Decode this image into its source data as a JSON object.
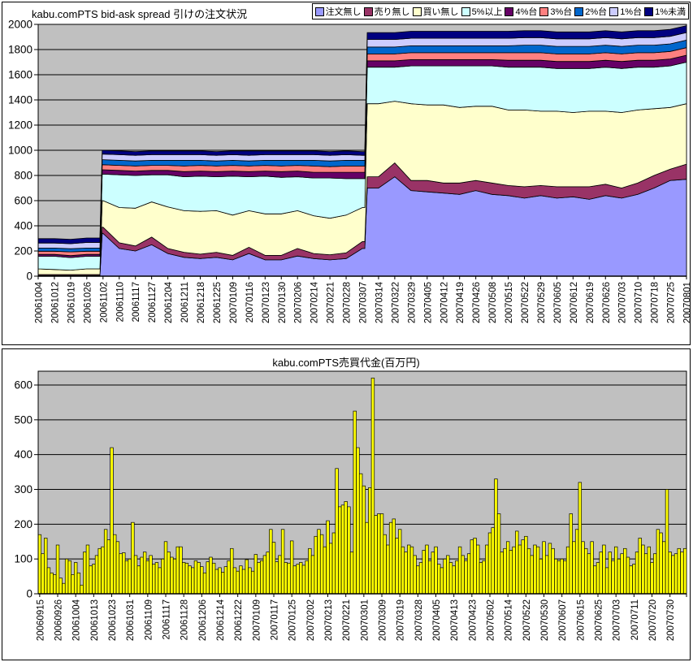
{
  "chart_data": [
    {
      "id": "spread",
      "type": "area",
      "stacked": true,
      "title": "kabu.comPTS bid-ask spread 引けの注文状況",
      "ylim": [
        0,
        2000
      ],
      "y_ticks": [
        0,
        200,
        400,
        600,
        800,
        1000,
        1200,
        1400,
        1600,
        1800,
        2000
      ],
      "grid": true,
      "legend_position": "top-right",
      "plot_bg": "#C0C0C0",
      "x_tick_labels": [
        "20061004",
        "20061012",
        "20061019",
        "20061026",
        "20061102",
        "20061110",
        "20061117",
        "20061127",
        "20061204",
        "20061211",
        "20061218",
        "20061225",
        "20070109",
        "20070116",
        "20070123",
        "20070130",
        "20070206",
        "20070214",
        "20070221",
        "20070228",
        "20070307",
        "20070314",
        "20070322",
        "20070329",
        "20070405",
        "20070412",
        "20070419",
        "20070426",
        "20070508",
        "20070515",
        "20070522",
        "20070529",
        "20070605",
        "20070612",
        "20070619",
        "20070626",
        "20070703",
        "20070710",
        "20070718",
        "20070725",
        "20070801"
      ],
      "x": [
        0,
        1,
        2,
        3,
        3.81,
        3.95,
        4,
        5,
        6,
        7,
        8,
        9,
        10,
        11,
        12,
        13,
        14,
        15,
        16,
        17,
        18,
        19,
        20,
        20.15,
        20.3,
        21,
        22,
        23,
        24,
        25,
        26,
        27,
        28,
        29,
        30,
        31,
        32,
        33,
        34,
        35,
        36,
        37,
        38,
        39,
        40
      ],
      "series": [
        {
          "name": "注文無し",
          "color": "#9999FF",
          "values": [
            5,
            5,
            5,
            5,
            5,
            340,
            340,
            220,
            200,
            250,
            180,
            150,
            140,
            150,
            130,
            180,
            130,
            130,
            160,
            140,
            130,
            140,
            220,
            220,
            700,
            700,
            790,
            680,
            670,
            660,
            650,
            680,
            650,
            640,
            620,
            640,
            620,
            630,
            610,
            640,
            620,
            650,
            700,
            760,
            770
          ]
        },
        {
          "name": "売り無し",
          "color": "#993366",
          "values": [
            8,
            8,
            8,
            8,
            8,
            50,
            50,
            45,
            40,
            60,
            40,
            40,
            35,
            40,
            35,
            50,
            35,
            35,
            60,
            40,
            40,
            45,
            55,
            55,
            90,
            90,
            110,
            80,
            90,
            80,
            90,
            80,
            90,
            80,
            90,
            80,
            90,
            80,
            100,
            90,
            80,
            90,
            100,
            90,
            120
          ]
        },
        {
          "name": "買い無し",
          "color": "#FFFFCC",
          "values": [
            45,
            40,
            35,
            45,
            45,
            210,
            210,
            280,
            300,
            280,
            330,
            330,
            340,
            330,
            320,
            290,
            330,
            330,
            300,
            300,
            290,
            300,
            270,
            270,
            580,
            580,
            490,
            610,
            600,
            620,
            600,
            590,
            610,
            600,
            610,
            590,
            600,
            590,
            600,
            580,
            600,
            580,
            530,
            490,
            480
          ]
        },
        {
          "name": "5%以上",
          "color": "#CCFFFF",
          "values": [
            100,
            105,
            100,
            100,
            100,
            210,
            210,
            260,
            260,
            215,
            255,
            270,
            280,
            270,
            310,
            270,
            300,
            290,
            270,
            300,
            320,
            290,
            230,
            230,
            290,
            290,
            270,
            300,
            310,
            310,
            330,
            320,
            320,
            340,
            340,
            350,
            340,
            350,
            340,
            350,
            350,
            340,
            330,
            330,
            330
          ]
        },
        {
          "name": "4%台",
          "color": "#660066",
          "values": [
            15,
            15,
            15,
            15,
            15,
            35,
            35,
            35,
            35,
            35,
            35,
            40,
            40,
            40,
            40,
            40,
            40,
            45,
            45,
            45,
            45,
            50,
            50,
            50,
            50,
            50,
            50,
            50,
            50,
            50,
            50,
            50,
            50,
            55,
            55,
            55,
            55,
            55,
            55,
            55,
            55,
            55,
            55,
            55,
            55
          ]
        },
        {
          "name": "3%台",
          "color": "#FF8080",
          "values": [
            25,
            25,
            30,
            25,
            25,
            40,
            40,
            40,
            40,
            40,
            40,
            45,
            45,
            45,
            45,
            45,
            45,
            45,
            45,
            50,
            45,
            50,
            50,
            50,
            55,
            55,
            55,
            55,
            55,
            55,
            55,
            55,
            55,
            60,
            60,
            60,
            60,
            60,
            60,
            60,
            60,
            60,
            60,
            60,
            60
          ]
        },
        {
          "name": "2%台",
          "color": "#0066CC",
          "values": [
            25,
            25,
            25,
            25,
            25,
            40,
            40,
            40,
            40,
            40,
            40,
            45,
            40,
            40,
            40,
            40,
            40,
            45,
            40,
            45,
            45,
            45,
            45,
            45,
            55,
            55,
            55,
            55,
            55,
            55,
            55,
            55,
            55,
            55,
            60,
            60,
            60,
            60,
            60,
            60,
            60,
            60,
            60,
            60,
            60
          ]
        },
        {
          "name": "1%台",
          "color": "#CCCCFF",
          "values": [
            40,
            40,
            40,
            45,
            45,
            45,
            45,
            45,
            45,
            45,
            45,
            45,
            45,
            45,
            45,
            45,
            45,
            45,
            45,
            45,
            45,
            45,
            40,
            40,
            60,
            60,
            60,
            60,
            60,
            60,
            60,
            60,
            60,
            60,
            60,
            60,
            60,
            60,
            60,
            60,
            60,
            60,
            60,
            60,
            60
          ]
        },
        {
          "name": "1%未満",
          "color": "#000080",
          "values": [
            35,
            35,
            35,
            35,
            35,
            30,
            30,
            30,
            30,
            30,
            30,
            30,
            30,
            30,
            30,
            35,
            30,
            30,
            30,
            30,
            30,
            30,
            30,
            30,
            55,
            55,
            55,
            55,
            55,
            55,
            55,
            55,
            55,
            55,
            55,
            55,
            55,
            55,
            55,
            55,
            55,
            55,
            55,
            55,
            55
          ]
        }
      ]
    },
    {
      "id": "turnover",
      "type": "bar",
      "title": "kabu.comPTS売買代金(百万円)",
      "ylim": [
        0,
        640
      ],
      "y_ticks": [
        0,
        100,
        200,
        300,
        400,
        500,
        600
      ],
      "grid": true,
      "plot_bg": "#C0C0C0",
      "bar_color": "#FFFF00",
      "label_every": 6,
      "x_tick_labels": [
        "20060915",
        "20060926",
        "20061004",
        "20061013",
        "20061023",
        "20061031",
        "20061109",
        "20061117",
        "20061128",
        "20061206",
        "20061214",
        "20061222",
        "20070109",
        "20070117",
        "20070125",
        "20070202",
        "20070213",
        "20070221",
        "20070301",
        "20070309",
        "20070319",
        "20070328",
        "20070405",
        "20070413",
        "20070423",
        "20070502",
        "20070514",
        "20070522",
        "20070530",
        "20070607",
        "20070615",
        "20070625",
        "20070703",
        "20070711",
        "20070720",
        "20070730"
      ],
      "values": [
        170,
        115,
        160,
        75,
        60,
        55,
        140,
        45,
        30,
        100,
        95,
        55,
        90,
        60,
        25,
        120,
        140,
        80,
        85,
        110,
        130,
        135,
        185,
        155,
        420,
        170,
        150,
        115,
        118,
        95,
        100,
        205,
        110,
        80,
        105,
        120,
        95,
        110,
        85,
        90,
        75,
        100,
        150,
        120,
        105,
        100,
        135,
        135,
        90,
        88,
        80,
        75,
        95,
        90,
        78,
        60,
        92,
        105,
        88,
        70,
        75,
        62,
        78,
        95,
        130,
        75,
        65,
        80,
        70,
        98,
        75,
        65,
        113,
        90,
        95,
        110,
        120,
        185,
        148,
        92,
        110,
        185,
        90,
        88,
        152,
        80,
        85,
        90,
        82,
        95,
        130,
        110,
        165,
        185,
        170,
        135,
        210,
        145,
        175,
        360,
        250,
        255,
        265,
        250,
        120,
        525,
        420,
        345,
        310,
        205,
        305,
        620,
        225,
        230,
        230,
        170,
        140,
        205,
        215,
        160,
        185,
        135,
        120,
        140,
        135,
        110,
        80,
        90,
        125,
        140,
        95,
        120,
        135,
        85,
        75,
        100,
        110,
        90,
        80,
        95,
        135,
        110,
        95,
        115,
        155,
        160,
        140,
        90,
        95,
        140,
        175,
        190,
        330,
        230,
        120,
        130,
        150,
        125,
        135,
        180,
        140,
        155,
        165,
        130,
        110,
        140,
        135,
        100,
        150,
        110,
        145,
        130,
        100,
        95,
        100,
        95,
        135,
        230,
        150,
        185,
        320,
        150,
        130,
        115,
        150,
        80,
        90,
        120,
        140,
        75,
        120,
        95,
        135,
        100,
        115,
        130,
        105,
        80,
        85,
        120,
        160,
        140,
        115,
        135,
        90,
        115,
        185,
        175,
        150,
        300,
        120,
        110,
        115,
        130,
        120,
        130
      ]
    }
  ],
  "colors": {
    "plot_background": "#C0C0C0",
    "gridline": "#000000",
    "chart_background": "#FFFFFF",
    "bar_fill": "#FFFF00"
  }
}
